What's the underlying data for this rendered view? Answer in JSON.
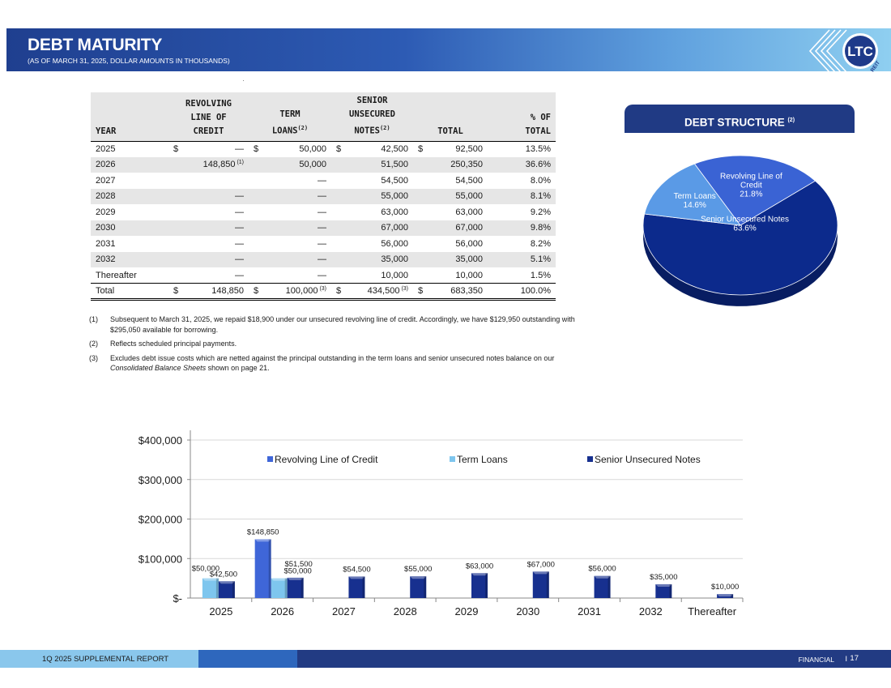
{
  "header": {
    "title": "DEBT MATURITY",
    "subtitle": "(AS OF MARCH 31, 2025, DOLLAR AMOUNTS IN THOUSANDS)",
    "logo_text": "LTC",
    "logo_subtext": "REIT"
  },
  "table": {
    "headers": {
      "year": "YEAR",
      "revolving_l1": "REVOLVING",
      "revolving_l2": "LINE OF",
      "revolving_l3": "CREDIT",
      "term_l1": "TERM",
      "term_l2": "LOANS",
      "term_sup": "(2)",
      "senior_l1": "SENIOR",
      "senior_l2": "UNSECURED",
      "senior_l3": "NOTES",
      "senior_sup": "(2)",
      "total": "TOTAL",
      "pct_l1": "% OF",
      "pct_l2": "TOTAL"
    },
    "currency": "$",
    "rows": [
      {
        "year": "2025",
        "revolving": "—",
        "revolving_note": "",
        "term": "50,000",
        "senior": "42,500",
        "total": "92,500",
        "pct": "13.5%"
      },
      {
        "year": "2026",
        "revolving": "148,850",
        "revolving_note": "(1)",
        "term": "50,000",
        "senior": "51,500",
        "total": "250,350",
        "pct": "36.6%"
      },
      {
        "year": "2027",
        "revolving": "",
        "revolving_note": "",
        "term": "—",
        "senior": "54,500",
        "total": "54,500",
        "pct": "8.0%"
      },
      {
        "year": "2028",
        "revolving": "—",
        "revolving_note": "",
        "term": "—",
        "senior": "55,000",
        "total": "55,000",
        "pct": "8.1%"
      },
      {
        "year": "2029",
        "revolving": "—",
        "revolving_note": "",
        "term": "—",
        "senior": "63,000",
        "total": "63,000",
        "pct": "9.2%"
      },
      {
        "year": "2030",
        "revolving": "—",
        "revolving_note": "",
        "term": "—",
        "senior": "67,000",
        "total": "67,000",
        "pct": "9.8%"
      },
      {
        "year": "2031",
        "revolving": "—",
        "revolving_note": "",
        "term": "—",
        "senior": "56,000",
        "total": "56,000",
        "pct": "8.2%"
      },
      {
        "year": "2032",
        "revolving": "—",
        "revolving_note": "",
        "term": "—",
        "senior": "35,000",
        "total": "35,000",
        "pct": "5.1%"
      },
      {
        "year": "Thereafter",
        "revolving": "—",
        "revolving_note": "",
        "term": "—",
        "senior": "10,000",
        "total": "10,000",
        "pct": "1.5%"
      }
    ],
    "total_row": {
      "year": "Total",
      "revolving": "148,850",
      "term": "100,000",
      "term_note": "(3)",
      "senior": "434,500",
      "senior_note": "(3)",
      "total": "683,350",
      "pct": "100.0%"
    }
  },
  "footnotes": [
    {
      "num": "(1)",
      "text": "Subsequent to March 31, 2025, we repaid $18,900 under our unsecured revolving line of credit.  Accordingly, we have $129,950 outstanding with $295,050 available for borrowing."
    },
    {
      "num": "(2)",
      "text": "Reflects scheduled principal payments."
    },
    {
      "num": "(3)",
      "text_before": "Excludes debt issue costs which are netted against the principal outstanding in the term loans and senior unsecured notes balance on our ",
      "text_italic": "Consolidated Balance Sheets",
      "text_after": " shown on page 21."
    }
  ],
  "debt_structure": {
    "title": "DEBT STRUCTURE",
    "title_sup": "(2)"
  },
  "chart_data": [
    {
      "type": "pie",
      "title": "DEBT STRUCTURE (2)",
      "slices": [
        {
          "label": "Senior Unsecured Notes",
          "value": 63.6,
          "value_label": "63.6%",
          "color": "#0c2a8c"
        },
        {
          "label": "Term Loans",
          "value": 14.6,
          "value_label": "14.6%",
          "color": "#5a9ae6"
        },
        {
          "label": "Revolving Line of Credit",
          "label_lines": [
            "Revolving Line of",
            "Credit"
          ],
          "value": 21.8,
          "value_label": "21.8%",
          "color": "#3a63d4"
        }
      ]
    },
    {
      "type": "bar",
      "categories": [
        "2025",
        "2026",
        "2027",
        "2028",
        "2029",
        "2030",
        "2031",
        "2032",
        "Thereafter"
      ],
      "series": [
        {
          "name": "Revolving Line of Credit",
          "color": "#3f66d8",
          "values": [
            0,
            148850,
            0,
            0,
            0,
            0,
            0,
            0,
            0
          ],
          "labels": [
            "",
            "$148,850",
            "",
            "",
            "",
            "",
            "",
            "",
            ""
          ]
        },
        {
          "name": "Term Loans",
          "color": "#7ec6ee",
          "values": [
            50000,
            50000,
            0,
            0,
            0,
            0,
            0,
            0,
            0
          ],
          "labels": [
            "$50,000",
            "$50,000",
            "",
            "",
            "",
            "",
            "",
            "",
            ""
          ]
        },
        {
          "name": "Senior Unsecured Notes",
          "color": "#17308f",
          "values": [
            42500,
            51500,
            54500,
            55000,
            63000,
            67000,
            56000,
            35000,
            10000
          ],
          "labels": [
            "$42,500",
            "$51,500",
            "$54,500",
            "$55,000",
            "$63,000",
            "$67,000",
            "$56,000",
            "$35,000",
            "$10,000"
          ]
        }
      ],
      "yticks": [
        0,
        100000,
        200000,
        300000,
        400000
      ],
      "ytick_labels": [
        "$-",
        "$100,000",
        "$200,000",
        "$300,000",
        "$400,000"
      ],
      "ylim": [
        0,
        400000
      ],
      "legend": "top",
      "grid": true
    }
  ],
  "footer": {
    "left": "1Q 2025 SUPPLEMENTAL REPORT",
    "section": "FINANCIAL",
    "separator": "I",
    "page": "17"
  }
}
